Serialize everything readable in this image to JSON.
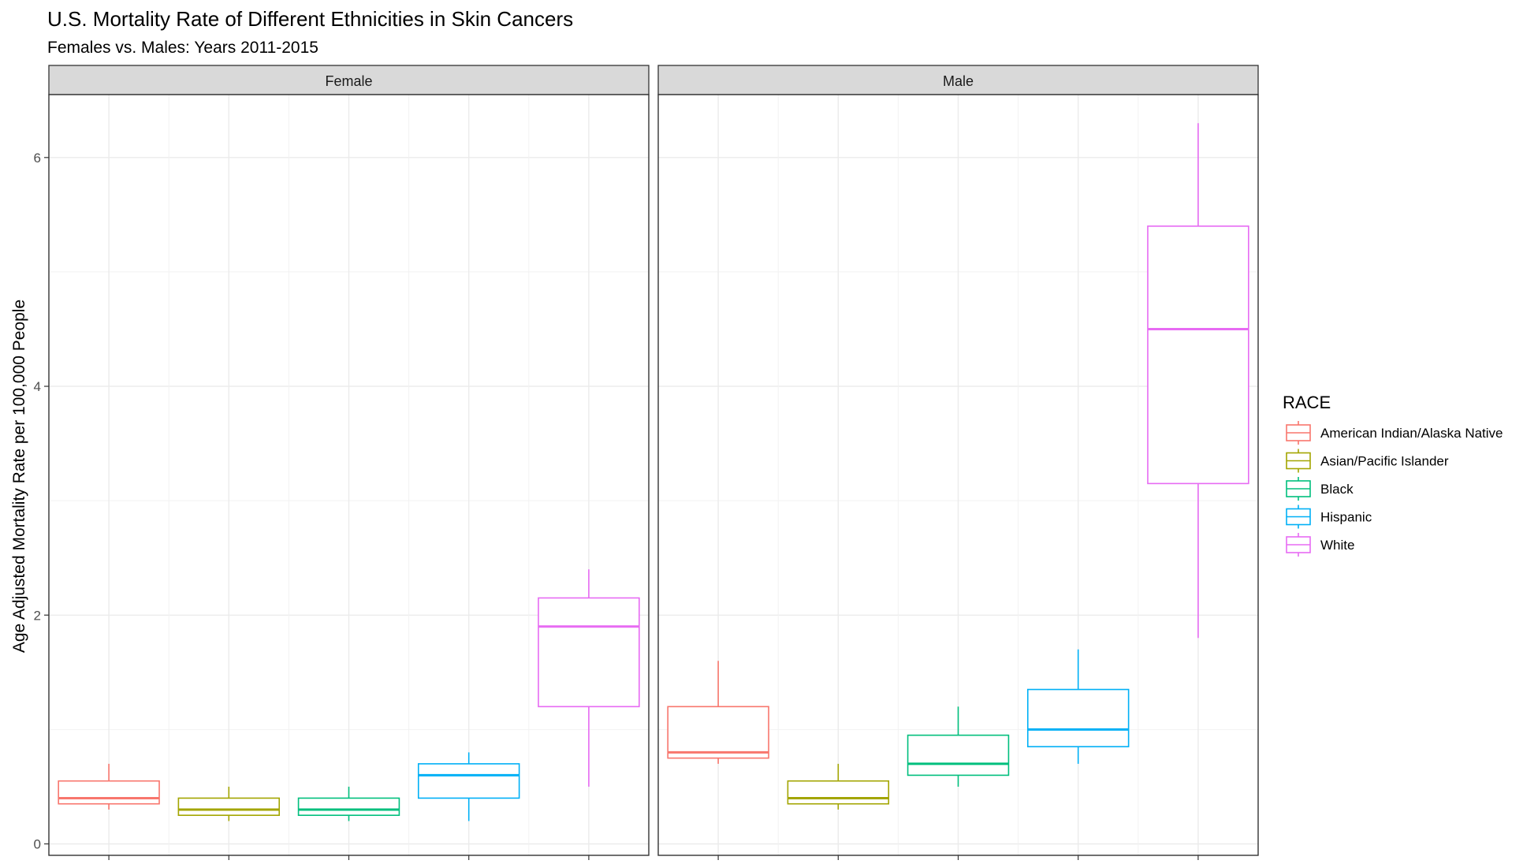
{
  "chart_data": {
    "type": "boxplot",
    "title": "U.S. Mortality Rate of Different Ethnicities in Skin Cancers",
    "subtitle": "Females vs. Males: Years 2011-2015",
    "ylabel": "Age Adjusted Mortality Rate per 100,000 People",
    "xlabel": "",
    "ylim": [
      -0.1,
      6.55
    ],
    "yticks": [
      0,
      2,
      4,
      6
    ],
    "grid": true,
    "legend": {
      "title": "RACE",
      "position": "right",
      "entries": [
        {
          "label": "American Indian/Alaska Native",
          "color": "#F8766D"
        },
        {
          "label": "Asian/Pacific Islander",
          "color": "#A3A500"
        },
        {
          "label": "Black",
          "color": "#00BF7D"
        },
        {
          "label": "Hispanic",
          "color": "#00B0F6"
        },
        {
          "label": "White",
          "color": "#E76BF3"
        }
      ]
    },
    "panels": [
      {
        "name": "Female",
        "boxes": [
          {
            "race": "American Indian/Alaska Native",
            "min": 0.3,
            "q1": 0.35,
            "median": 0.4,
            "q3": 0.55,
            "max": 0.7
          },
          {
            "race": "Asian/Pacific Islander",
            "min": 0.2,
            "q1": 0.25,
            "median": 0.3,
            "q3": 0.4,
            "max": 0.5
          },
          {
            "race": "Black",
            "min": 0.2,
            "q1": 0.25,
            "median": 0.3,
            "q3": 0.4,
            "max": 0.5
          },
          {
            "race": "Hispanic",
            "min": 0.2,
            "q1": 0.4,
            "median": 0.6,
            "q3": 0.7,
            "max": 0.8
          },
          {
            "race": "White",
            "min": 0.5,
            "q1": 1.2,
            "median": 1.9,
            "q3": 2.15,
            "max": 2.4
          }
        ]
      },
      {
        "name": "Male",
        "boxes": [
          {
            "race": "American Indian/Alaska Native",
            "min": 0.7,
            "q1": 0.75,
            "median": 0.8,
            "q3": 1.2,
            "max": 1.6
          },
          {
            "race": "Asian/Pacific Islander",
            "min": 0.3,
            "q1": 0.35,
            "median": 0.4,
            "q3": 0.55,
            "max": 0.7
          },
          {
            "race": "Black",
            "min": 0.5,
            "q1": 0.6,
            "median": 0.7,
            "q3": 0.95,
            "max": 1.2
          },
          {
            "race": "Hispanic",
            "min": 0.7,
            "q1": 0.85,
            "median": 1.0,
            "q3": 1.35,
            "max": 1.7
          },
          {
            "race": "White",
            "min": 1.8,
            "q1": 3.15,
            "median": 4.5,
            "q3": 5.4,
            "max": 6.3
          }
        ]
      }
    ]
  }
}
